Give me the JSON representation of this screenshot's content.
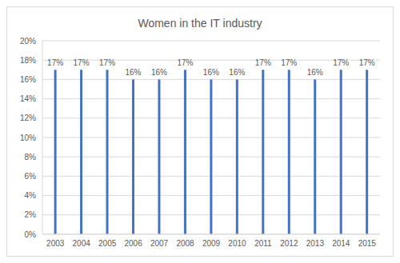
{
  "chart_data": {
    "type": "bar",
    "title": "Women in the IT industry",
    "categories": [
      "2003",
      "2004",
      "2005",
      "2006",
      "2007",
      "2008",
      "2009",
      "2010",
      "2011",
      "2012",
      "2013",
      "2014",
      "2015"
    ],
    "values": [
      17,
      17,
      17,
      16,
      16,
      17,
      16,
      16,
      17,
      17,
      16,
      17,
      17
    ],
    "value_labels": [
      "17%",
      "17%",
      "17%",
      "16%",
      "16%",
      "17%",
      "16%",
      "16%",
      "17%",
      "17%",
      "16%",
      "17%",
      "17%"
    ],
    "data_labels": true,
    "color": "#4472c4",
    "ylim": [
      0,
      20
    ],
    "yticks": [
      {
        "value": 0,
        "label": "0%"
      },
      {
        "value": 2,
        "label": "2%"
      },
      {
        "value": 4,
        "label": "4%"
      },
      {
        "value": 6,
        "label": "6%"
      },
      {
        "value": 8,
        "label": "8%"
      },
      {
        "value": 10,
        "label": "10%"
      },
      {
        "value": 12,
        "label": "12%"
      },
      {
        "value": 14,
        "label": "14%"
      },
      {
        "value": 16,
        "label": "16%"
      },
      {
        "value": 18,
        "label": "18%"
      },
      {
        "value": 20,
        "label": "20%"
      }
    ],
    "grid": true
  }
}
